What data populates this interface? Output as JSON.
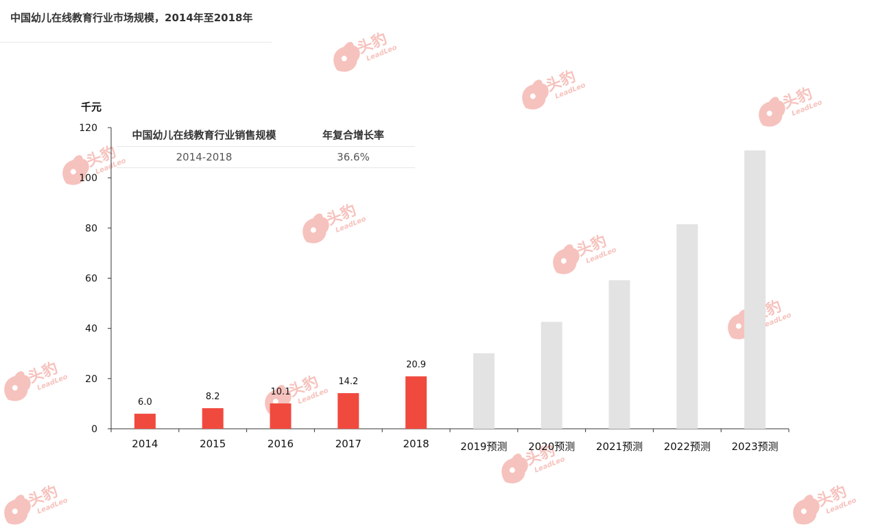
{
  "page": {
    "title": "中国幼儿在线教育行业市场规模，2014年至2018年",
    "watermark_text": "头豹",
    "watermark_subtext": "LeadLeo"
  },
  "colors": {
    "actual": "#f04a3e",
    "forecast": "#e3e3e3",
    "watermark": "#f6c2bd",
    "axis": "#333333"
  },
  "cagr_table": {
    "header_left": "中国幼儿在线教育行业销售规模",
    "header_right": "年复合增长率",
    "rows": [
      {
        "period": "2014-2018",
        "rate": "36.6%"
      }
    ]
  },
  "chart_data": {
    "type": "bar",
    "unit_label": "千元",
    "categories": [
      "2014",
      "2015",
      "2016",
      "2017",
      "2018",
      "2019预测",
      "2020预测",
      "2021预测",
      "2022预测",
      "2023预测"
    ],
    "series": [
      {
        "values": [
          6.0,
          8.2,
          10.1,
          14.2,
          20.9,
          30.1,
          42.6,
          59.2,
          81.5,
          110.9
        ],
        "kinds": [
          "actual",
          "actual",
          "actual",
          "actual",
          "actual",
          "forecast",
          "forecast",
          "forecast",
          "forecast",
          "forecast"
        ],
        "data_labels": [
          "6.0",
          "8.2",
          "10.1",
          "14.2",
          "20.9",
          "",
          "",
          "",
          "",
          ""
        ]
      }
    ],
    "ylim": [
      0,
      120
    ],
    "yticks": [
      0,
      20,
      40,
      60,
      80,
      100,
      120
    ],
    "grid": false,
    "legend": "none"
  }
}
